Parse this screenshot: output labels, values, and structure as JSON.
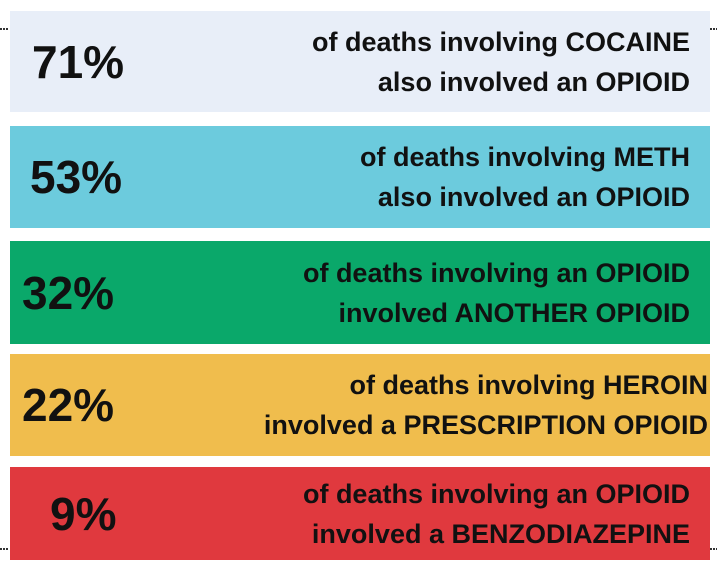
{
  "items": [
    {
      "stat": "71%",
      "lines": [
        "of deaths involving COCAINE",
        "also involved an OPIOID"
      ]
    },
    {
      "stat": "53%",
      "lines": [
        "of deaths involving METH",
        "also involved an OPIOID"
      ]
    },
    {
      "stat": "32%",
      "lines": [
        "of deaths involving an OPIOID",
        "involved ANOTHER OPIOID"
      ]
    },
    {
      "stat": "22%",
      "lines": [
        "of deaths involving HEROIN",
        "involved a PRESCRIPTION OPIOID"
      ]
    },
    {
      "stat": "9%",
      "lines": [
        "of deaths involving an OPIOID",
        "involved a BENZODIAZEPINE"
      ]
    }
  ]
}
